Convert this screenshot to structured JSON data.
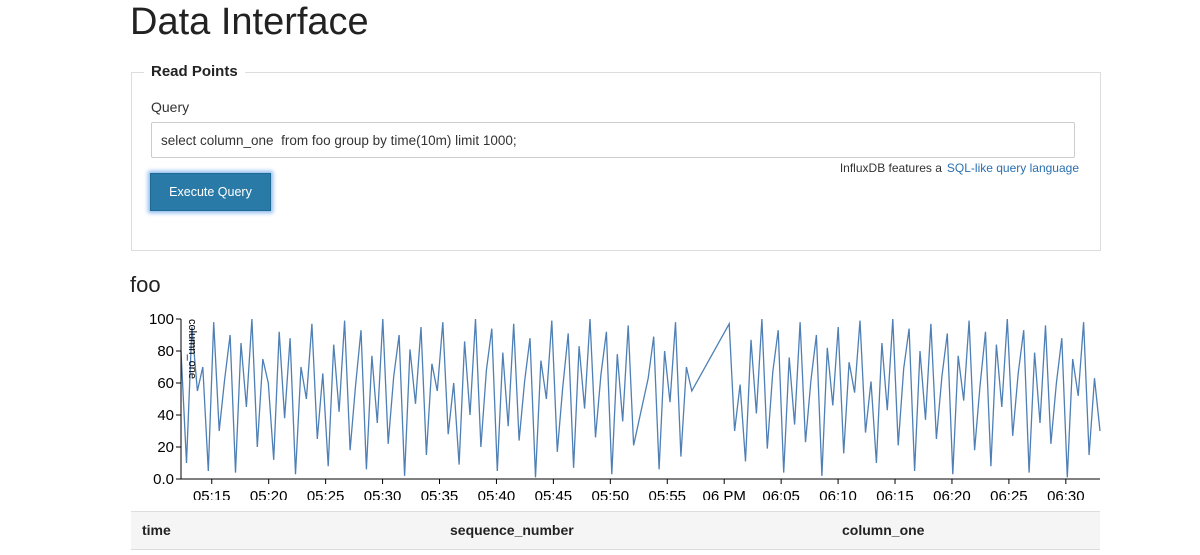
{
  "page": {
    "title": "Data Interface"
  },
  "read_points": {
    "legend": "Read Points",
    "query_label": "Query",
    "query_value": "select column_one  from foo group by time(10m) limit 1000;",
    "hint_text": "InfluxDB features a",
    "hint_link": "SQL-like query language",
    "execute_label": "Execute Query"
  },
  "chart_title": "foo",
  "chart_data": {
    "type": "line",
    "title": "foo",
    "ylabel": "column_one",
    "xlabel": "",
    "ylim": [
      0,
      100
    ],
    "yticks": [
      "0.0",
      "20",
      "40",
      "60",
      "80",
      "100"
    ],
    "xticks": [
      "05:15",
      "05:20",
      "05:25",
      "05:30",
      "05:35",
      "05:40",
      "05:45",
      "05:50",
      "05:55",
      "06 PM",
      "06:05",
      "06:10",
      "06:15",
      "06:20",
      "06:25",
      "06:30"
    ],
    "x_start_minute": 312.3,
    "x_end_minute": 393,
    "interval_minutes": 0.5,
    "color": "#4e7fb5",
    "values": [
      80,
      10,
      95,
      55,
      70,
      5,
      98,
      30,
      62,
      90,
      4,
      85,
      45,
      100,
      20,
      75,
      60,
      12,
      92,
      38,
      88,
      3,
      70,
      50,
      97,
      25,
      66,
      8,
      84,
      42,
      99,
      18,
      58,
      93,
      6,
      77,
      35,
      100,
      22,
      64,
      90,
      2,
      81,
      47,
      95,
      15,
      72,
      55,
      98,
      28,
      60,
      9,
      86,
      40,
      100,
      20,
      68,
      94,
      5,
      79,
      33,
      97,
      24,
      61,
      88,
      1,
      74,
      50,
      99,
      17,
      57,
      91,
      7,
      83,
      44,
      100,
      26,
      65,
      92,
      3,
      78,
      36,
      96,
      21,
      63,
      89,
      6,
      80,
      48,
      98,
      14,
      70,
      55,
      97,
      30,
      59,
      11,
      87,
      41,
      100,
      19,
      67,
      93,
      4,
      76,
      34,
      98,
      23,
      62,
      90,
      2,
      82,
      46,
      95,
      16,
      73,
      54,
      99,
      29,
      61,
      10,
      85,
      43,
      100,
      21,
      69,
      94,
      5,
      80,
      37,
      97,
      25,
      64,
      91,
      3,
      77,
      49,
      99,
      18,
      58,
      92,
      8,
      84,
      45,
      100,
      27,
      66,
      93,
      4,
      79,
      35,
      96,
      22,
      60,
      88,
      1,
      75,
      52,
      98,
      15,
      63,
      30
    ],
    "gaps": [
      [
        352.5,
        353.3
      ],
      [
        357.2,
        360.0
      ]
    ]
  },
  "table": {
    "headers": [
      "time",
      "sequence_number",
      "column_one"
    ]
  }
}
